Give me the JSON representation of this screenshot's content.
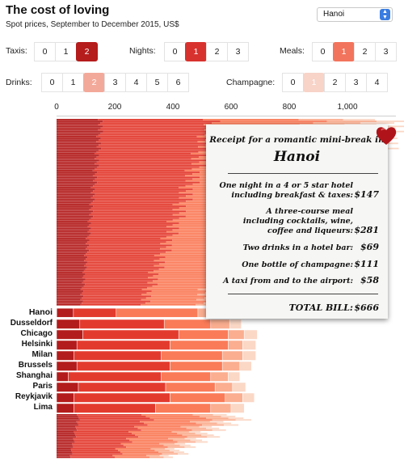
{
  "header": {
    "title": "The cost of loving",
    "subtitle": "Spot prices, September to December 2015, US$"
  },
  "city_select": {
    "value": "Hanoi",
    "arrow_icon": "select-arrows-icon"
  },
  "controls": {
    "taxis": {
      "label": "Taxis:",
      "options": [
        "0",
        "1",
        "2"
      ],
      "selected": 2
    },
    "nights": {
      "label": "Nights:",
      "options": [
        "0",
        "1",
        "2",
        "3"
      ],
      "selected": 1
    },
    "meals": {
      "label": "Meals:",
      "options": [
        "0",
        "1",
        "2",
        "3"
      ],
      "selected": 1
    },
    "drinks": {
      "label": "Drinks:",
      "options": [
        "0",
        "1",
        "2",
        "3",
        "4",
        "5",
        "6"
      ],
      "selected": 2
    },
    "champagne": {
      "label": "Champagne:",
      "options": [
        "0",
        "1",
        "2",
        "3",
        "4"
      ],
      "selected": 1
    }
  },
  "colors": {
    "sel_taxis": "#b51c1c",
    "sel_nights": "#d8322e",
    "sel_meals": "#f2745c",
    "sel_drinks": "#f3a99a",
    "sel_champagne": "#f7d3c8",
    "seg_taxi": "#b31c1c",
    "seg_hotel": "#e33a2e",
    "seg_meal": "#fa7b58",
    "seg_drinks": "#fbae90",
    "seg_champagne": "#fbd7c6",
    "heart": "#b0141a"
  },
  "chart_data": {
    "type": "bar",
    "title": "The cost of loving",
    "subtitle": "Spot prices, September to December 2015, US$",
    "xlim": [
      0,
      1200
    ],
    "x_ticks": [
      "0",
      "200",
      "400",
      "600",
      "800",
      "1,000"
    ],
    "tick_values": [
      0,
      200,
      400,
      600,
      800,
      1000
    ],
    "highlighted_city": "Hanoi",
    "segment_order": [
      "Taxi",
      "Hotel",
      "Meals",
      "Drinks",
      "Champagne"
    ],
    "labeled_cities": [
      {
        "name": "Hanoi",
        "values": [
          58,
          147,
          281,
          69,
          111
        ]
      },
      {
        "name": "Dusseldorf",
        "values": [
          80,
          290,
          160,
          65,
          40
        ]
      },
      {
        "name": "Chicago",
        "values": [
          90,
          330,
          170,
          55,
          45
        ]
      },
      {
        "name": "Helsinki",
        "values": [
          70,
          320,
          200,
          50,
          45
        ]
      },
      {
        "name": "Milan",
        "values": [
          60,
          300,
          210,
          70,
          45
        ]
      },
      {
        "name": "Brussels",
        "values": [
          70,
          320,
          180,
          60,
          40
        ]
      },
      {
        "name": "Shanghai",
        "values": [
          40,
          320,
          170,
          60,
          40
        ]
      },
      {
        "name": "Paris",
        "values": [
          75,
          300,
          170,
          60,
          45
        ]
      },
      {
        "name": "Reykjavik",
        "values": [
          60,
          330,
          190,
          60,
          40
        ]
      },
      {
        "name": "Lima",
        "values": [
          60,
          280,
          190,
          70,
          45
        ]
      }
    ]
  },
  "receipt": {
    "title": "Receipt for a romantic mini-break in",
    "city": "Hanoi",
    "items": [
      {
        "lines": [
          "One night in a 4 or 5 star hotel",
          "including breakfast & taxes:"
        ],
        "price": "$147"
      },
      {
        "lines": [
          "A three-course meal",
          "including cocktails, wine,",
          "coffee and liqueurs:"
        ],
        "price": "$281"
      },
      {
        "lines": [
          "Two drinks in a hotel bar:"
        ],
        "price": "$69"
      },
      {
        "lines": [
          "One bottle of champagne:"
        ],
        "price": "$111"
      },
      {
        "lines": [
          "A taxi from and to the airport:"
        ],
        "price": "$58"
      }
    ],
    "total_label": "TOTAL BILL:",
    "total_value": "$666"
  }
}
